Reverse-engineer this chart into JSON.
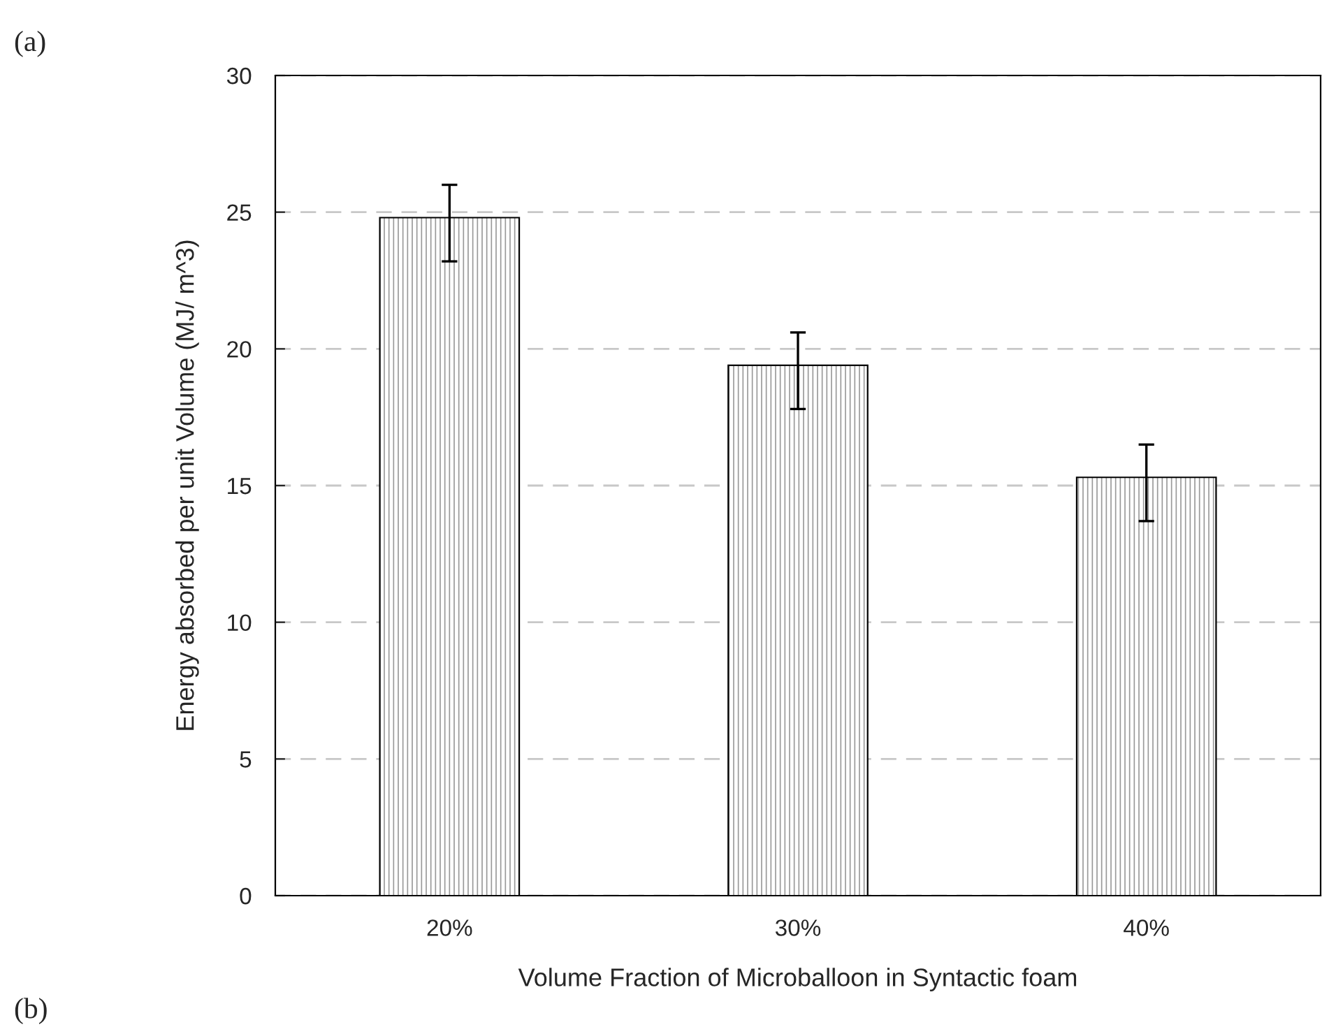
{
  "chart_data": {
    "type": "bar",
    "xlabel": "Volume Fraction of Microballoon in Syntactic foam",
    "ylabel": "Energy absorbed per unit Volume (MJ/ m^3)",
    "categories": [
      "20%",
      "30%",
      "40%"
    ],
    "color": "#000000",
    "values": [
      24.8,
      19.4,
      15.3
    ],
    "errors": [
      [
        23.2,
        26.0
      ],
      [
        17.8,
        20.6
      ],
      [
        13.7,
        16.5
      ]
    ],
    "ylim": [
      0,
      30
    ],
    "yticks": [
      0,
      5,
      10,
      15,
      20,
      25,
      30
    ],
    "grid": "y",
    "annotations": [
      "(a)",
      "(b)"
    ]
  }
}
